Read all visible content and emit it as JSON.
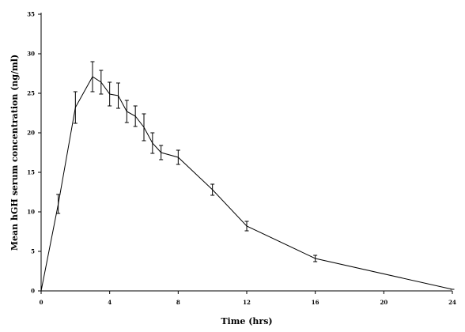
{
  "chart_data": {
    "type": "line",
    "xlabel": "Time (hrs)",
    "ylabel": "Mean hGH serum concentration (ng/ml)",
    "xlim": [
      0,
      24
    ],
    "ylim": [
      0,
      35
    ],
    "x_ticks": [
      0,
      4,
      8,
      12,
      16,
      20,
      24
    ],
    "y_ticks": [
      0,
      5,
      10,
      15,
      20,
      25,
      30,
      35
    ],
    "grid": false,
    "series": [
      {
        "x": [
          0,
          1,
          2,
          3,
          3.5,
          4,
          4.5,
          5,
          5.5,
          6,
          6.5,
          7,
          8,
          10,
          12,
          16,
          24
        ],
        "y": [
          0,
          11,
          23.2,
          27.1,
          26.4,
          24.9,
          24.7,
          22.7,
          22.1,
          20.7,
          18.7,
          17.5,
          16.9,
          12.8,
          8.2,
          4.1,
          0.2
        ],
        "err": [
          0,
          1.2,
          2.0,
          1.9,
          1.5,
          1.5,
          1.6,
          1.4,
          1.3,
          1.7,
          1.3,
          0.9,
          0.9,
          0.7,
          0.6,
          0.4,
          0
        ]
      }
    ]
  }
}
